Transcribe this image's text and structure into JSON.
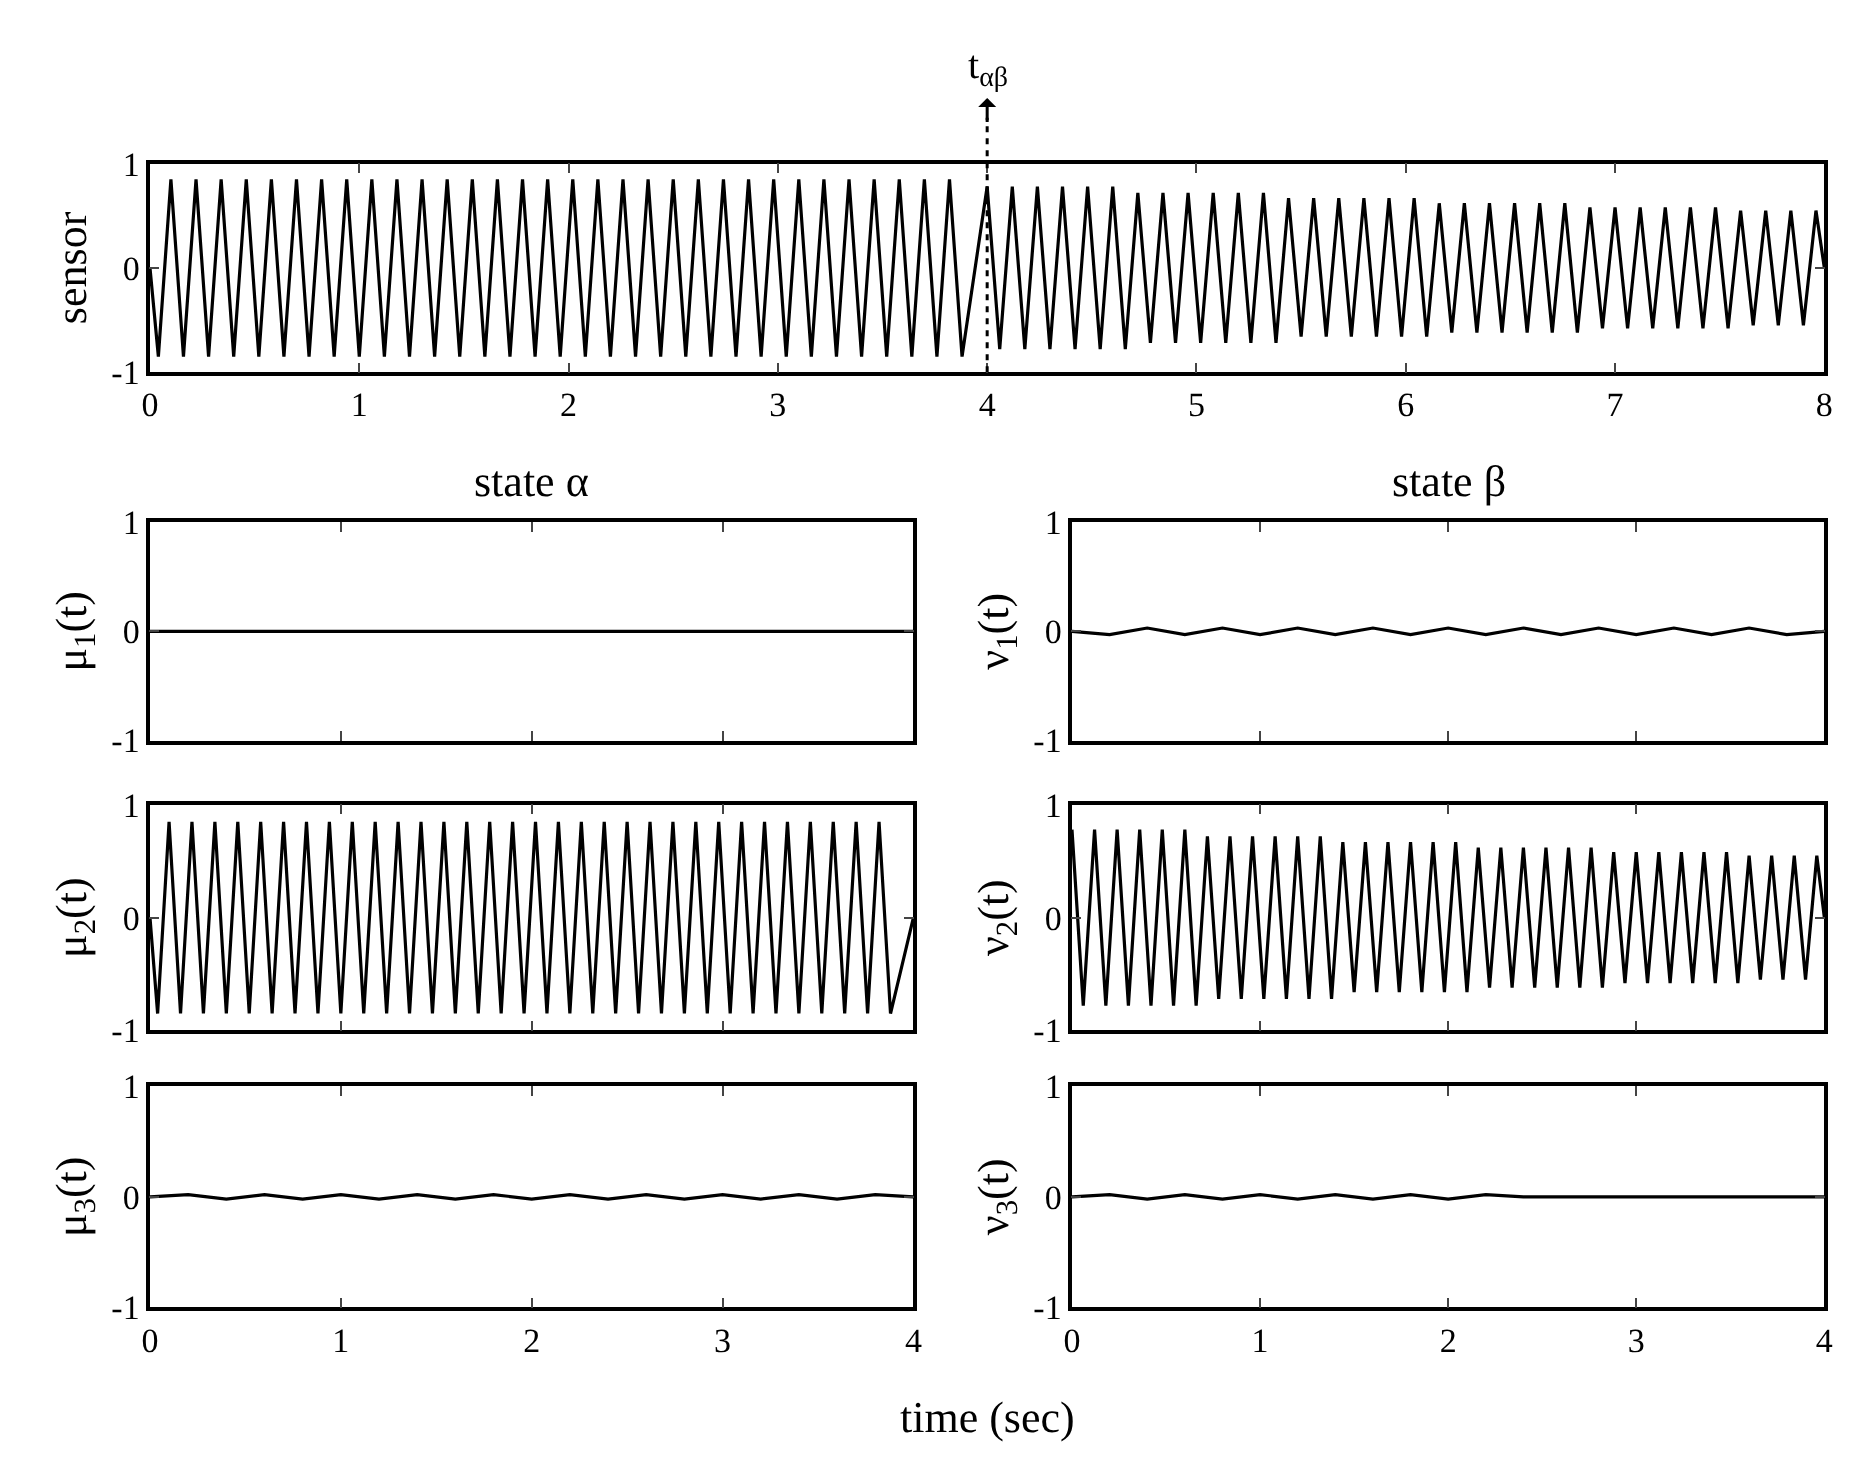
{
  "chart_data": [
    {
      "type": "line",
      "ylabel": "sensor",
      "color": "#000000",
      "xlim": [
        0,
        8
      ],
      "ylim": [
        -1,
        1
      ],
      "xticks": [
        0,
        1,
        2,
        3,
        4,
        5,
        6,
        7,
        8
      ],
      "yticks": [
        -1,
        0,
        1
      ],
      "ref_lines": [
        {
          "axis": "x",
          "value": 4,
          "label": "t$_{αβ}$",
          "line_style": "dotted"
        }
      ],
      "x": [
        0,
        0.04,
        0.1,
        0.16,
        0.22,
        0.28,
        0.34,
        0.4,
        0.46,
        0.52,
        0.58,
        0.64,
        0.7,
        0.76,
        0.82,
        0.88,
        0.94,
        1.0,
        1.06,
        1.12,
        1.18,
        1.24,
        1.3,
        1.36,
        1.42,
        1.48,
        1.54,
        1.6,
        1.66,
        1.72,
        1.78,
        1.84,
        1.9,
        1.96,
        2.02,
        2.08,
        2.14,
        2.2,
        2.26,
        2.32,
        2.38,
        2.44,
        2.5,
        2.56,
        2.62,
        2.68,
        2.74,
        2.8,
        2.86,
        2.92,
        2.98,
        3.04,
        3.1,
        3.16,
        3.22,
        3.28,
        3.34,
        3.4,
        3.46,
        3.52,
        3.58,
        3.64,
        3.7,
        3.76,
        3.82,
        3.88,
        4.0,
        4.06,
        4.12,
        4.18,
        4.24,
        4.3,
        4.36,
        4.42,
        4.48,
        4.54,
        4.6,
        4.66,
        4.72,
        4.78,
        4.84,
        4.9,
        4.96,
        5.02,
        5.08,
        5.14,
        5.2,
        5.26,
        5.32,
        5.38,
        5.44,
        5.5,
        5.56,
        5.62,
        5.68,
        5.74,
        5.8,
        5.86,
        5.92,
        5.98,
        6.04,
        6.1,
        6.16,
        6.22,
        6.28,
        6.34,
        6.4,
        6.46,
        6.52,
        6.58,
        6.64,
        6.7,
        6.76,
        6.82,
        6.88,
        6.94,
        7.0,
        7.06,
        7.12,
        7.18,
        7.24,
        7.3,
        7.36,
        7.42,
        7.48,
        7.54,
        7.6,
        7.66,
        7.72,
        7.78,
        7.84,
        7.9,
        7.96,
        8.0
      ],
      "values": [
        0,
        -0.85,
        0.85,
        -0.85,
        0.85,
        -0.85,
        0.85,
        -0.85,
        0.85,
        -0.85,
        0.85,
        -0.85,
        0.85,
        -0.85,
        0.85,
        -0.85,
        0.85,
        -0.85,
        0.85,
        -0.85,
        0.85,
        -0.85,
        0.85,
        -0.85,
        0.85,
        -0.85,
        0.85,
        -0.85,
        0.85,
        -0.85,
        0.85,
        -0.85,
        0.85,
        -0.85,
        0.85,
        -0.85,
        0.85,
        -0.85,
        0.85,
        -0.85,
        0.85,
        -0.85,
        0.85,
        -0.85,
        0.85,
        -0.85,
        0.85,
        -0.85,
        0.85,
        -0.85,
        0.85,
        -0.85,
        0.85,
        -0.85,
        0.85,
        -0.85,
        0.85,
        -0.85,
        0.85,
        -0.85,
        0.85,
        -0.85,
        0.85,
        -0.85,
        0.85,
        -0.85,
        0.78,
        -0.78,
        0.78,
        -0.78,
        0.78,
        -0.78,
        0.78,
        -0.78,
        0.78,
        -0.78,
        0.78,
        -0.78,
        0.72,
        -0.72,
        0.72,
        -0.72,
        0.72,
        -0.72,
        0.72,
        -0.72,
        0.72,
        -0.72,
        0.72,
        -0.72,
        0.67,
        -0.66,
        0.67,
        -0.66,
        0.67,
        -0.66,
        0.67,
        -0.66,
        0.67,
        -0.66,
        0.67,
        -0.66,
        0.62,
        -0.62,
        0.62,
        -0.62,
        0.62,
        -0.62,
        0.62,
        -0.62,
        0.62,
        -0.62,
        0.62,
        -0.62,
        0.58,
        -0.58,
        0.58,
        -0.58,
        0.58,
        -0.58,
        0.58,
        -0.58,
        0.58,
        -0.58,
        0.58,
        -0.58,
        0.55,
        -0.55,
        0.55,
        -0.55,
        0.55,
        -0.55,
        0.55,
        0
      ]
    },
    {
      "type": "line",
      "title": "state α",
      "ylabel": "μ$_{1}$(t)",
      "color": "#000000",
      "xlim": [
        0,
        4
      ],
      "ylim": [
        -1,
        1
      ],
      "xticks": [
        0,
        1,
        2,
        3,
        4
      ],
      "yticks": [
        -1,
        0,
        1
      ],
      "tick_labels": "y",
      "x": [
        0,
        4
      ],
      "values": [
        0,
        0
      ]
    },
    {
      "type": "line",
      "title": "state β",
      "ylabel": "ν$_{1}$(t)",
      "color": "#000000",
      "xlim": [
        0,
        4
      ],
      "ylim": [
        -1,
        1
      ],
      "xticks": [
        0,
        1,
        2,
        3,
        4
      ],
      "yticks": [
        -1,
        0,
        1
      ],
      "tick_labels": "y",
      "x": [
        0,
        0.2,
        0.4,
        0.6,
        0.8,
        1.0,
        1.2,
        1.4,
        1.6,
        1.8,
        2.0,
        2.2,
        2.4,
        2.6,
        2.8,
        3.0,
        3.2,
        3.4,
        3.6,
        3.8,
        4.0
      ],
      "values": [
        0,
        -0.03,
        0.03,
        -0.03,
        0.03,
        -0.03,
        0.03,
        -0.03,
        0.03,
        -0.03,
        0.03,
        -0.03,
        0.03,
        -0.03,
        0.03,
        -0.03,
        0.03,
        -0.03,
        0.03,
        -0.03,
        0
      ]
    },
    {
      "type": "line",
      "ylabel": "μ$_{2}$(t)",
      "color": "#000000",
      "xlim": [
        0,
        4
      ],
      "ylim": [
        -1,
        1
      ],
      "xticks": [
        0,
        1,
        2,
        3,
        4
      ],
      "yticks": [
        -1,
        0,
        1
      ],
      "tick_labels": "y",
      "x": [
        0,
        0.04,
        0.1,
        0.16,
        0.22,
        0.28,
        0.34,
        0.4,
        0.46,
        0.52,
        0.58,
        0.64,
        0.7,
        0.76,
        0.82,
        0.88,
        0.94,
        1.0,
        1.06,
        1.12,
        1.18,
        1.24,
        1.3,
        1.36,
        1.42,
        1.48,
        1.54,
        1.6,
        1.66,
        1.72,
        1.78,
        1.84,
        1.9,
        1.96,
        2.02,
        2.08,
        2.14,
        2.2,
        2.26,
        2.32,
        2.38,
        2.44,
        2.5,
        2.56,
        2.62,
        2.68,
        2.74,
        2.8,
        2.86,
        2.92,
        2.98,
        3.04,
        3.1,
        3.16,
        3.22,
        3.28,
        3.34,
        3.4,
        3.46,
        3.52,
        3.58,
        3.64,
        3.7,
        3.76,
        3.82,
        3.88,
        4.0
      ],
      "values": [
        0,
        -0.85,
        0.85,
        -0.85,
        0.85,
        -0.85,
        0.85,
        -0.85,
        0.85,
        -0.85,
        0.85,
        -0.85,
        0.85,
        -0.85,
        0.85,
        -0.85,
        0.85,
        -0.85,
        0.85,
        -0.85,
        0.85,
        -0.85,
        0.85,
        -0.85,
        0.85,
        -0.85,
        0.85,
        -0.85,
        0.85,
        -0.85,
        0.85,
        -0.85,
        0.85,
        -0.85,
        0.85,
        -0.85,
        0.85,
        -0.85,
        0.85,
        -0.85,
        0.85,
        -0.85,
        0.85,
        -0.85,
        0.85,
        -0.85,
        0.85,
        -0.85,
        0.85,
        -0.85,
        0.85,
        -0.85,
        0.85,
        -0.85,
        0.85,
        -0.85,
        0.85,
        -0.85,
        0.85,
        -0.85,
        0.85,
        -0.85,
        0.85,
        -0.85,
        0.85,
        -0.85,
        0
      ]
    },
    {
      "type": "line",
      "ylabel": "ν$_{2}$(t)",
      "color": "#000000",
      "xlim": [
        0,
        4
      ],
      "ylim": [
        -1,
        1
      ],
      "xticks": [
        0,
        1,
        2,
        3,
        4
      ],
      "yticks": [
        -1,
        0,
        1
      ],
      "tick_labels": "y",
      "x": [
        0,
        0.06,
        0.12,
        0.18,
        0.24,
        0.3,
        0.36,
        0.42,
        0.48,
        0.54,
        0.6,
        0.66,
        0.72,
        0.78,
        0.84,
        0.9,
        0.96,
        1.02,
        1.08,
        1.14,
        1.2,
        1.26,
        1.32,
        1.38,
        1.44,
        1.5,
        1.56,
        1.62,
        1.68,
        1.74,
        1.8,
        1.86,
        1.92,
        1.98,
        2.04,
        2.1,
        2.16,
        2.22,
        2.28,
        2.34,
        2.4,
        2.46,
        2.52,
        2.58,
        2.64,
        2.7,
        2.76,
        2.82,
        2.88,
        2.94,
        3.0,
        3.06,
        3.12,
        3.18,
        3.24,
        3.3,
        3.36,
        3.42,
        3.48,
        3.54,
        3.6,
        3.66,
        3.72,
        3.78,
        3.84,
        3.9,
        3.96,
        4.0
      ],
      "values": [
        0.78,
        -0.78,
        0.78,
        -0.78,
        0.78,
        -0.78,
        0.78,
        -0.78,
        0.78,
        -0.78,
        0.78,
        -0.78,
        0.72,
        -0.72,
        0.72,
        -0.72,
        0.72,
        -0.72,
        0.72,
        -0.72,
        0.72,
        -0.72,
        0.72,
        -0.72,
        0.67,
        -0.66,
        0.67,
        -0.66,
        0.67,
        -0.66,
        0.67,
        -0.66,
        0.67,
        -0.66,
        0.67,
        -0.66,
        0.62,
        -0.62,
        0.62,
        -0.62,
        0.62,
        -0.62,
        0.62,
        -0.62,
        0.62,
        -0.62,
        0.62,
        -0.62,
        0.58,
        -0.58,
        0.58,
        -0.58,
        0.58,
        -0.58,
        0.58,
        -0.58,
        0.58,
        -0.58,
        0.58,
        -0.58,
        0.55,
        -0.55,
        0.55,
        -0.55,
        0.55,
        -0.55,
        0.55,
        0
      ]
    },
    {
      "type": "line",
      "ylabel": "μ$_{3}$(t)",
      "xlabel": "time (sec)",
      "color": "#000000",
      "xlim": [
        0,
        4
      ],
      "ylim": [
        -1,
        1
      ],
      "xticks": [
        0,
        1,
        2,
        3,
        4
      ],
      "yticks": [
        -1,
        0,
        1
      ],
      "x": [
        0,
        0.2,
        0.4,
        0.6,
        0.8,
        1.0,
        1.2,
        1.4,
        1.6,
        1.8,
        2.0,
        2.2,
        2.4,
        2.6,
        2.8,
        3.0,
        3.2,
        3.4,
        3.6,
        3.8,
        4.0
      ],
      "values": [
        0,
        0.02,
        -0.02,
        0.02,
        -0.02,
        0.02,
        -0.02,
        0.02,
        -0.02,
        0.02,
        -0.02,
        0.02,
        -0.02,
        0.02,
        -0.02,
        0.02,
        -0.02,
        0.02,
        -0.02,
        0.02,
        0
      ]
    },
    {
      "type": "line",
      "ylabel": "ν$_{3}$(t)",
      "color": "#000000",
      "xlim": [
        0,
        4
      ],
      "ylim": [
        -1,
        1
      ],
      "xticks": [
        0,
        1,
        2,
        3,
        4
      ],
      "yticks": [
        -1,
        0,
        1
      ],
      "x": [
        0,
        0.2,
        0.4,
        0.6,
        0.8,
        1.0,
        1.2,
        1.4,
        1.6,
        1.8,
        2.0,
        2.2,
        2.4,
        4.0
      ],
      "values": [
        0,
        0.02,
        -0.02,
        0.02,
        -0.02,
        0.02,
        -0.02,
        0.02,
        -0.02,
        0.02,
        -0.02,
        0.02,
        0,
        0
      ]
    }
  ]
}
